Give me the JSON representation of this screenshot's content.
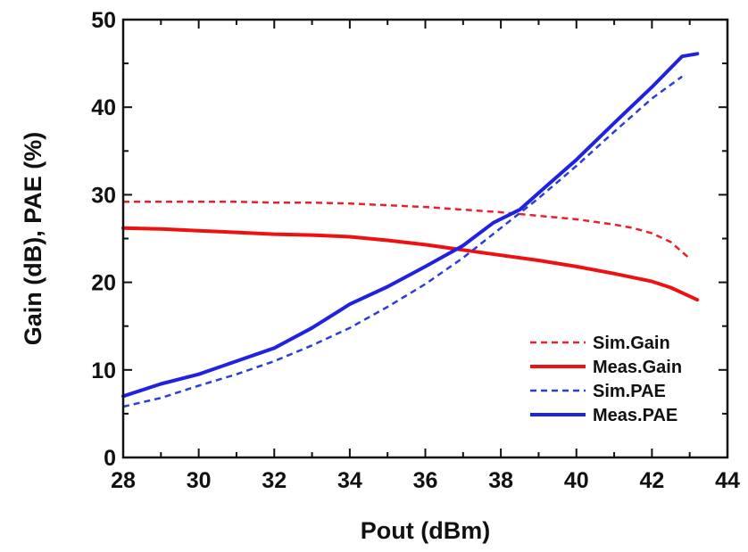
{
  "chart_data": {
    "type": "line",
    "xlabel": "Pout (dBm)",
    "ylabel": "Gain (dB), PAE (%)",
    "xlim": [
      28,
      44
    ],
    "ylim": [
      0,
      50
    ],
    "xticks": [
      28,
      30,
      32,
      34,
      36,
      38,
      40,
      42,
      44
    ],
    "yticks": [
      0,
      10,
      20,
      30,
      40,
      50
    ],
    "grid": false,
    "legend_position": "bottom-right",
    "series": [
      {
        "name": "Sim.Gain",
        "color": "#e8202a",
        "style": "dashed",
        "x": [
          28,
          29,
          30,
          31,
          32,
          33,
          34,
          35,
          36,
          37,
          38,
          39,
          40,
          41,
          41.5,
          42,
          42.5,
          43
        ],
        "y": [
          29.2,
          29.2,
          29.2,
          29.2,
          29.1,
          29.1,
          29.0,
          28.8,
          28.6,
          28.3,
          28.0,
          27.6,
          27.2,
          26.6,
          26.2,
          25.6,
          24.6,
          22.7
        ]
      },
      {
        "name": "Meas.Gain",
        "color": "#ee1111",
        "style": "solid",
        "x": [
          28,
          29,
          30,
          31,
          32,
          33,
          34,
          35,
          36,
          37,
          38,
          39,
          40,
          41,
          42,
          42.5,
          43.2
        ],
        "y": [
          26.2,
          26.1,
          25.9,
          25.7,
          25.5,
          25.4,
          25.2,
          24.8,
          24.3,
          23.7,
          23.1,
          22.5,
          21.8,
          21.0,
          20.1,
          19.4,
          18.0
        ]
      },
      {
        "name": "Sim.PAE",
        "color": "#2a3fd6",
        "style": "dashed",
        "x": [
          28,
          29,
          30,
          31,
          32,
          33,
          34,
          35,
          36,
          37,
          38,
          39,
          40,
          41,
          42,
          42.8
        ],
        "y": [
          5.8,
          6.8,
          8.2,
          9.5,
          11.0,
          12.8,
          14.8,
          17.2,
          19.8,
          22.8,
          26.2,
          29.6,
          33.3,
          37.2,
          41.0,
          43.5
        ]
      },
      {
        "name": "Meas.PAE",
        "color": "#1f22e0",
        "style": "solid",
        "x": [
          28,
          29,
          30,
          31,
          32,
          33,
          34,
          35,
          36,
          37,
          37.8,
          38.5,
          39,
          40,
          41,
          42,
          42.8,
          43.2
        ],
        "y": [
          7.0,
          8.4,
          9.5,
          11.0,
          12.5,
          14.8,
          17.5,
          19.5,
          21.8,
          24.2,
          26.8,
          28.3,
          30.2,
          34.0,
          38.2,
          42.3,
          45.8,
          46.1
        ]
      }
    ]
  }
}
